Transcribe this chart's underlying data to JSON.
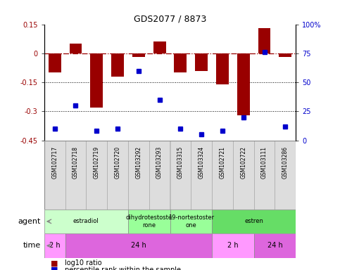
{
  "title": "GDS2077 / 8873",
  "samples": [
    "GSM102717",
    "GSM102718",
    "GSM102719",
    "GSM102720",
    "GSM103292",
    "GSM103293",
    "GSM103315",
    "GSM103324",
    "GSM102721",
    "GSM102722",
    "GSM103111",
    "GSM103286"
  ],
  "log10_ratio": [
    -0.1,
    0.05,
    -0.28,
    -0.12,
    -0.02,
    0.06,
    -0.1,
    -0.09,
    -0.16,
    -0.32,
    0.13,
    -0.02
  ],
  "percentile": [
    10,
    30,
    8,
    10,
    60,
    35,
    10,
    5,
    8,
    20,
    76,
    12
  ],
  "bar_color": "#990000",
  "dot_color": "#0000cc",
  "left_ylim": [
    -0.45,
    0.15
  ],
  "right_ylim": [
    0,
    100
  ],
  "left_yticks": [
    0.15,
    0.0,
    -0.15,
    -0.3,
    -0.45
  ],
  "left_yticklabels": [
    "0.15",
    "0",
    "-0.15",
    "-0.3",
    "-0.45"
  ],
  "right_yticks": [
    100,
    75,
    50,
    25,
    0
  ],
  "right_yticklabels": [
    "100%",
    "75",
    "50",
    "25",
    "0"
  ],
  "agents": [
    {
      "label": "estradiol",
      "start": 0,
      "end": 4,
      "color": "#ccffcc"
    },
    {
      "label": "dihydrotestoste\nrone",
      "start": 4,
      "end": 6,
      "color": "#99ff99"
    },
    {
      "label": "19-nortestoster\none",
      "start": 6,
      "end": 8,
      "color": "#99ff99"
    },
    {
      "label": "estren",
      "start": 8,
      "end": 12,
      "color": "#66dd66"
    }
  ],
  "times": [
    {
      "label": "2 h",
      "start": 0,
      "end": 1,
      "color": "#ff99ff"
    },
    {
      "label": "24 h",
      "start": 1,
      "end": 8,
      "color": "#dd66dd"
    },
    {
      "label": "2 h",
      "start": 8,
      "end": 10,
      "color": "#ff99ff"
    },
    {
      "label": "24 h",
      "start": 10,
      "end": 12,
      "color": "#dd66dd"
    }
  ],
  "legend_red": "log10 ratio",
  "legend_blue": "percentile rank within the sample",
  "agent_label": "agent",
  "time_label": "time"
}
